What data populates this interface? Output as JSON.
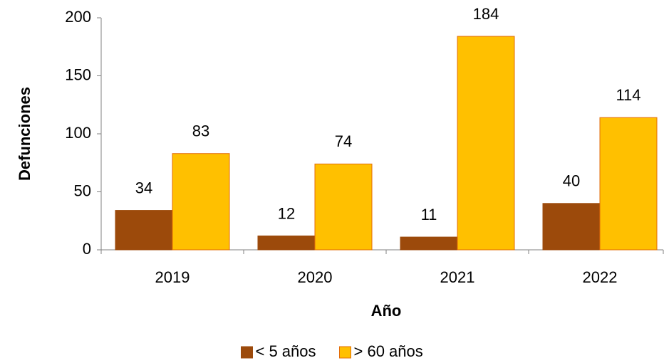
{
  "chart_data": {
    "type": "bar",
    "x_label": "Año",
    "y_label": "Defunciones",
    "categories": [
      "2019",
      "2020",
      "2021",
      "2022"
    ],
    "series": [
      {
        "name": "< 5 años",
        "color": "#9C4A0B",
        "values": [
          34,
          12,
          11,
          40
        ]
      },
      {
        "name": "> 60 años",
        "color": "#FFC000",
        "values": [
          83,
          74,
          184,
          114
        ]
      }
    ],
    "ylim": [
      0,
      200
    ],
    "yticks": [
      0,
      50,
      100,
      150,
      200
    ],
    "grid": false,
    "legend": "bottom"
  }
}
